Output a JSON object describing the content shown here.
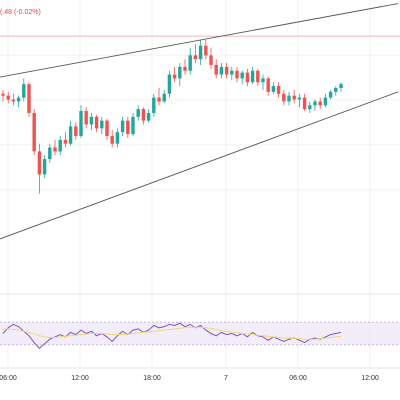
{
  "header": {
    "change_text": "(.48 (-0.02%)"
  },
  "colors": {
    "up": "#26a69a",
    "down": "#ef5350",
    "trendline": "#555555",
    "price_line": "#e8a3a3",
    "rsi_line": "#7e57c2",
    "rsi_ma": "#f0d67a",
    "rsi_band_fill": "#ede7f6",
    "rsi_band_border": "#b39ddb",
    "grid": "#f0f0f0",
    "axis_text": "#333333"
  },
  "chart_data": [
    {
      "type": "candlestick",
      "title": "",
      "x_tick_labels": [
        "06:00",
        "12:00",
        "18:00",
        "7",
        "06:00",
        "12:00"
      ],
      "grid": true,
      "price_line": 102,
      "ylim": [
        0,
        100
      ],
      "series": [
        {
          "ohlc": [
            [
              72,
              74,
              68,
              71
            ],
            [
              71,
              73,
              67,
              69
            ],
            [
              69,
              72,
              66,
              68
            ],
            [
              68,
              71,
              65,
              70
            ],
            [
              70,
              80,
              68,
              77
            ],
            [
              77,
              78,
              60,
              62
            ],
            [
              62,
              64,
              40,
              42
            ],
            [
              42,
              46,
              20,
              30
            ],
            [
              30,
              40,
              28,
              38
            ],
            [
              38,
              46,
              36,
              44
            ],
            [
              44,
              48,
              40,
              42
            ],
            [
              42,
              50,
              40,
              48
            ],
            [
              48,
              52,
              44,
              46
            ],
            [
              46,
              58,
              45,
              55
            ],
            [
              55,
              57,
              48,
              50
            ],
            [
              50,
              66,
              49,
              63
            ],
            [
              63,
              65,
              54,
              56
            ],
            [
              56,
              62,
              53,
              60
            ],
            [
              60,
              61,
              52,
              54
            ],
            [
              54,
              60,
              51,
              58
            ],
            [
              58,
              59,
              48,
              50
            ],
            [
              50,
              53,
              44,
              46
            ],
            [
              46,
              54,
              44,
              52
            ],
            [
              52,
              60,
              50,
              58
            ],
            [
              58,
              60,
              49,
              51
            ],
            [
              51,
              62,
              50,
              60
            ],
            [
              60,
              66,
              58,
              64
            ],
            [
              64,
              65,
              56,
              58
            ],
            [
              58,
              64,
              57,
              62
            ],
            [
              62,
              72,
              60,
              70
            ],
            [
              70,
              75,
              66,
              68
            ],
            [
              68,
              74,
              67,
              72
            ],
            [
              72,
              84,
              70,
              82
            ],
            [
              82,
              86,
              78,
              80
            ],
            [
              80,
              88,
              76,
              86
            ],
            [
              86,
              90,
              82,
              84
            ],
            [
              84,
              96,
              82,
              92
            ],
            [
              92,
              98,
              88,
              90
            ],
            [
              90,
              100,
              87,
              97
            ],
            [
              97,
              100,
              90,
              92
            ],
            [
              92,
              96,
              85,
              87
            ],
            [
              87,
              90,
              80,
              82
            ],
            [
              82,
              88,
              80,
              86
            ],
            [
              86,
              88,
              80,
              82
            ],
            [
              82,
              86,
              79,
              84
            ],
            [
              84,
              86,
              78,
              80
            ],
            [
              80,
              84,
              77,
              83
            ],
            [
              83,
              85,
              76,
              78
            ],
            [
              78,
              86,
              77,
              84
            ],
            [
              84,
              85,
              76,
              78
            ],
            [
              78,
              82,
              74,
              80
            ],
            [
              80,
              81,
              71,
              73
            ],
            [
              73,
              78,
              72,
              76
            ],
            [
              76,
              78,
              70,
              72
            ],
            [
              72,
              74,
              66,
              68
            ],
            [
              68,
              73,
              66,
              71
            ],
            [
              71,
              74,
              67,
              69
            ],
            [
              69,
              72,
              65,
              70
            ],
            [
              70,
              72,
              63,
              64
            ],
            [
              64,
              68,
              62,
              66
            ],
            [
              66,
              69,
              63,
              68
            ],
            [
              68,
              70,
              64,
              66
            ],
            [
              66,
              72,
              65,
              70
            ],
            [
              70,
              74,
              69,
              73
            ],
            [
              73,
              76,
              71,
              75
            ],
            [
              75,
              78,
              73,
              77
            ]
          ]
        }
      ],
      "trendlines": [
        {
          "name": "upper",
          "start": [
            -2,
            80
          ],
          "end": [
            76,
            119
          ]
        },
        {
          "name": "lower",
          "start": [
            -2,
            -5
          ],
          "end": [
            76,
            73
          ]
        }
      ]
    },
    {
      "type": "line",
      "title": "",
      "ylim": [
        0,
        100
      ],
      "band": [
        30,
        70
      ],
      "series": [
        {
          "values": [
            50,
            60,
            66,
            62,
            54,
            46,
            34,
            24,
            32,
            40,
            44,
            48,
            44,
            52,
            48,
            56,
            50,
            54,
            46,
            50,
            44,
            36,
            46,
            54,
            48,
            56,
            58,
            52,
            56,
            64,
            60,
            62,
            66,
            64,
            68,
            62,
            66,
            60,
            64,
            56,
            50,
            46,
            52,
            48,
            50,
            46,
            50,
            44,
            52,
            46,
            44,
            38,
            44,
            40,
            36,
            40,
            42,
            38,
            34,
            40,
            42,
            40,
            44,
            48,
            50,
            52
          ]
        },
        {
          "values": [
            58,
            58,
            57,
            56,
            54,
            52,
            49,
            46,
            44,
            43,
            43,
            44,
            45,
            46,
            47,
            48,
            49,
            50,
            50,
            50,
            49,
            48,
            48,
            48,
            49,
            50,
            51,
            52,
            53,
            54,
            55,
            56,
            57,
            58,
            59,
            60,
            61,
            61,
            61,
            60,
            59,
            57,
            55,
            54,
            52,
            51,
            50,
            49,
            48,
            47,
            46,
            45,
            44,
            43,
            42,
            42,
            41,
            41,
            40,
            40,
            40,
            41,
            42,
            43,
            44,
            45
          ]
        }
      ]
    }
  ]
}
